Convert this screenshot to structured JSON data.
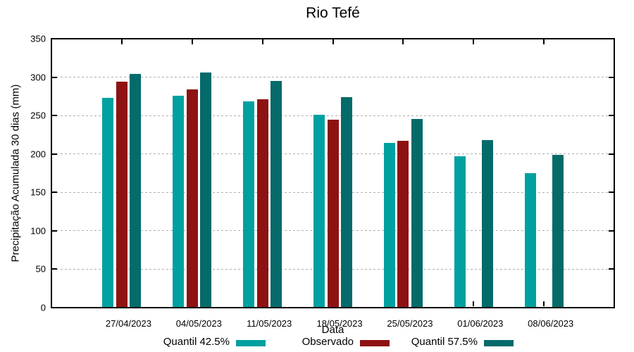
{
  "window": {
    "title": "Rio Tefé"
  },
  "chart_data": {
    "type": "bar",
    "title": "Rio Tefé",
    "xlabel": "Data",
    "ylabel": "Precipitação Acumulada 30 dias (mm)",
    "ylim": [
      0,
      350
    ],
    "yticks": [
      0,
      50,
      100,
      150,
      200,
      250,
      300,
      350
    ],
    "x_range": [
      -1,
      7
    ],
    "grid": "horizontal-dotted",
    "grid_color": "#b0b0b0",
    "frame_color": "#000000",
    "background_color": "#ffffff",
    "legend_position": "bottom-outside",
    "categories": [
      "27/04/2023",
      "04/05/2023",
      "11/05/2023",
      "18/05/2023",
      "25/05/2023",
      "01/06/2023",
      "08/06/2023"
    ],
    "series": [
      {
        "name": "Quantil 42.5%",
        "color": "#00A0A0",
        "values": [
          273,
          276,
          268,
          251,
          214,
          197,
          175
        ]
      },
      {
        "name": "Observado",
        "color": "#8E1212",
        "values": [
          294,
          284,
          271,
          245,
          217,
          null,
          null
        ]
      },
      {
        "name": "Quantil 57.5%",
        "color": "#056A6A",
        "values": [
          304,
          306,
          295,
          274,
          246,
          218,
          199
        ]
      }
    ]
  }
}
